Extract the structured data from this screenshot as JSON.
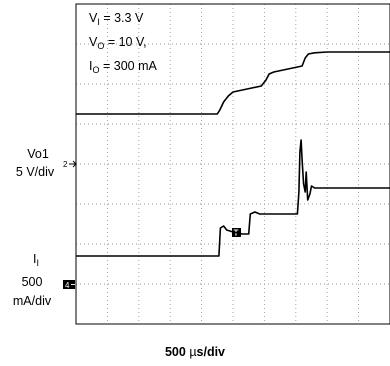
{
  "chart_data": {
    "type": "line",
    "title": "",
    "annotation": {
      "line1": {
        "main": "V",
        "sub": "I",
        "rest": " = 3.3 V"
      },
      "line2": {
        "main": "V",
        "sub": "O",
        "rest": " = 10 V,"
      },
      "line3": {
        "main": "I",
        "sub": "O",
        "rest": " = 300 mA"
      }
    },
    "xlabel": {
      "prefix": "500 ",
      "mu": "µ",
      "suffix": "s/div"
    },
    "channel_labels": {
      "vo1": {
        "line1": "Vo1",
        "line2": "5 V/div"
      },
      "ii": {
        "main": "I",
        "sub": "I",
        "line2": "500",
        "line3": "mA/div"
      }
    },
    "markers": {
      "ch2": "2",
      "ch4": "4",
      "trigger": "T"
    },
    "grid": true,
    "divisions": {
      "x": 10,
      "y": 8
    },
    "x_unit": "div",
    "y_unit": "div",
    "series": [
      {
        "x": [
          0,
          4.5,
          4.58,
          4.7,
          4.85,
          5.0,
          5.3,
          5.6,
          5.9,
          6.05,
          6.15,
          6.3,
          6.6,
          6.9,
          7.2,
          7.3,
          7.4,
          7.6,
          8.0,
          8.5,
          10
        ],
        "y": [
          5.25,
          5.25,
          5.35,
          5.55,
          5.7,
          5.8,
          5.85,
          5.9,
          5.95,
          6.1,
          6.25,
          6.3,
          6.35,
          6.4,
          6.45,
          6.65,
          6.75,
          6.78,
          6.8,
          6.8,
          6.8
        ]
      },
      {
        "x": [
          0,
          4.55,
          4.6,
          4.7,
          4.8,
          5.0,
          5.3,
          5.5,
          5.55,
          5.7,
          5.85,
          6.2,
          6.5,
          7.05,
          7.1,
          7.13,
          7.17,
          7.2,
          7.25,
          7.3,
          7.33,
          7.38,
          7.45,
          7.5,
          7.6,
          7.8,
          8.2,
          9,
          10
        ],
        "y": [
          1.7,
          1.7,
          2.4,
          2.45,
          2.35,
          2.3,
          2.25,
          2.25,
          2.75,
          2.8,
          2.75,
          2.75,
          2.75,
          2.75,
          3.3,
          4.3,
          4.6,
          4.1,
          3.5,
          3.3,
          3.8,
          3.1,
          3.25,
          3.45,
          3.4,
          3.4,
          3.4,
          3.4,
          3.4
        ]
      }
    ],
    "colors": {
      "trace": "#000000",
      "grid": "#9a9a9a",
      "background": "#ffffff"
    }
  }
}
